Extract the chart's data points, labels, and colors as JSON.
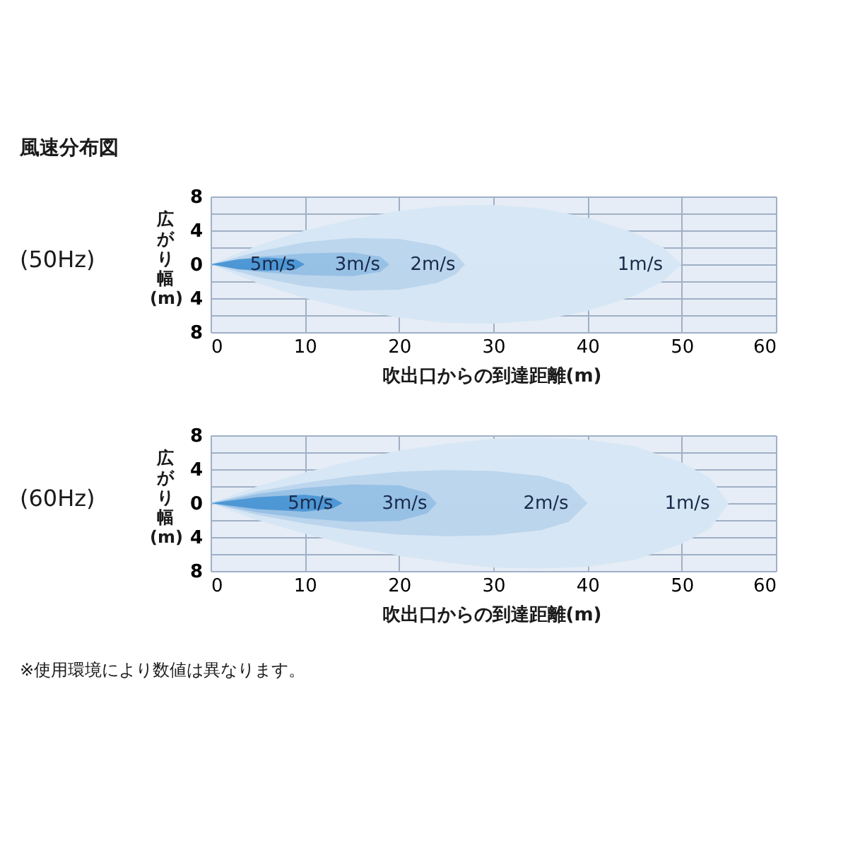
{
  "chart_data": [
    {
      "type": "area",
      "title": "風速分布図",
      "subtitle": "(50Hz)",
      "xlabel": "吹出口からの到達距離(m)",
      "ylabel": "広がり幅(m)",
      "xlim": [
        0,
        60
      ],
      "xticks": [
        0,
        10,
        20,
        30,
        40,
        50,
        60
      ],
      "ylim": [
        -8,
        8
      ],
      "yticks": [
        {
          "value": -8,
          "label": "8"
        },
        {
          "value": -6,
          "label": null
        },
        {
          "value": -4,
          "label": "4"
        },
        {
          "value": -2,
          "label": null
        },
        0,
        {
          "value": 2,
          "label": null
        },
        4,
        {
          "value": 6,
          "label": null
        },
        8
      ],
      "grid": true,
      "series": [
        {
          "name": "1m/s",
          "color": "#d7e7f5",
          "x": [
            0,
            2,
            5,
            10,
            15,
            20,
            25,
            30,
            35,
            40,
            45,
            48,
            50
          ],
          "values": [
            0,
            0.9,
            2.2,
            4,
            5.3,
            6.3,
            6.9,
            7,
            6.6,
            5.5,
            3.7,
            2,
            0
          ]
        },
        {
          "color": "#d6e6f4",
          "x": [
            0,
            2,
            5,
            10,
            15,
            20,
            25,
            30,
            35,
            40,
            45,
            48,
            50
          ],
          "values": [
            0,
            -0.9,
            -2.2,
            -4,
            -5.3,
            -6.3,
            -6.9,
            -7,
            -6.6,
            -5.5,
            -3.7,
            -2,
            0
          ]
        },
        {
          "name": "2m/s",
          "color": "#bcd6ee",
          "x": [
            0,
            5,
            10,
            15,
            20,
            24,
            26,
            27
          ],
          "values": [
            0,
            1.5,
            2.6,
            3.1,
            3,
            2.2,
            1.2,
            0
          ]
        },
        {
          "color": "#bbd5ed",
          "x": [
            0,
            5,
            10,
            15,
            20,
            24,
            26,
            27
          ],
          "values": [
            0,
            -1.5,
            -2.6,
            -3.1,
            -3,
            -2.2,
            -1.2,
            0
          ]
        },
        {
          "name": "3m/s",
          "color": "#98c1e6",
          "x": [
            0,
            5,
            10,
            15,
            18,
            19
          ],
          "values": [
            0,
            0.9,
            1.3,
            1.4,
            0.9,
            0
          ]
        },
        {
          "color": "#97c0e5",
          "x": [
            0,
            5,
            10,
            15,
            18,
            19
          ],
          "values": [
            0,
            -0.9,
            -1.3,
            -1.4,
            -0.9,
            0
          ]
        },
        {
          "name": "5m/s",
          "color": "#4f98d6",
          "x": [
            0,
            3,
            6,
            9,
            10
          ],
          "values": [
            0,
            0.6,
            0.8,
            0.6,
            0
          ]
        },
        {
          "color": "#4e97d5",
          "x": [
            0,
            3,
            6,
            9,
            10
          ],
          "values": [
            0,
            -0.6,
            -0.8,
            -0.6,
            0
          ]
        }
      ]
    },
    {
      "type": "area",
      "subtitle": "(60Hz)",
      "xlabel": "吹出口からの到達距離(m)",
      "ylabel": "広がり幅(m)",
      "xlim": [
        0,
        60
      ],
      "xticks": [
        0,
        10,
        20,
        30,
        40,
        50,
        60
      ],
      "ylim": [
        -8,
        8
      ],
      "yticks": [
        {
          "value": -8,
          "label": "8"
        },
        {
          "value": -6,
          "label": null
        },
        {
          "value": -4,
          "label": "4"
        },
        {
          "value": -2,
          "label": null
        },
        0,
        {
          "value": 2,
          "label": null
        },
        4,
        {
          "value": 6,
          "label": null
        },
        8
      ],
      "grid": true,
      "series": [
        {
          "name": "1m/s",
          "color": "#d7e7f5",
          "x": [
            0,
            5,
            10,
            15,
            20,
            25,
            30,
            35,
            40,
            45,
            50,
            53,
            55
          ],
          "values": [
            0,
            2,
            3.6,
            5,
            6.2,
            7,
            7.6,
            7.7,
            7.5,
            6.7,
            4.8,
            3,
            0
          ]
        },
        {
          "color": "#d6e6f4",
          "x": [
            0,
            5,
            10,
            15,
            20,
            25,
            30,
            35,
            40,
            45,
            50,
            53,
            55
          ],
          "values": [
            0,
            -2,
            -3.6,
            -5,
            -6.2,
            -7,
            -7.6,
            -7.7,
            -7.5,
            -6.7,
            -4.8,
            -3,
            0
          ]
        },
        {
          "name": "2m/s",
          "color": "#bcd6ee",
          "x": [
            0,
            5,
            10,
            15,
            20,
            25,
            30,
            35,
            38,
            40
          ],
          "values": [
            0,
            1.4,
            2.4,
            3.2,
            3.7,
            3.9,
            3.8,
            3.2,
            2.2,
            0
          ]
        },
        {
          "color": "#bbd5ed",
          "x": [
            0,
            5,
            10,
            15,
            20,
            25,
            30,
            35,
            38,
            40
          ],
          "values": [
            0,
            -1.4,
            -2.4,
            -3.2,
            -3.7,
            -3.9,
            -3.8,
            -3.2,
            -2.2,
            0
          ]
        },
        {
          "name": "3m/s",
          "color": "#98c1e6",
          "x": [
            0,
            5,
            10,
            15,
            20,
            23,
            24
          ],
          "values": [
            0,
            1.1,
            1.8,
            2.2,
            2.1,
            1.2,
            0
          ]
        },
        {
          "color": "#97c0e5",
          "x": [
            0,
            5,
            10,
            15,
            20,
            23,
            24
          ],
          "values": [
            0,
            -1.1,
            -1.8,
            -2.2,
            -2.1,
            -1.2,
            0
          ]
        },
        {
          "name": "5m/s",
          "color": "#4f98d6",
          "x": [
            0,
            5,
            10,
            13,
            14
          ],
          "values": [
            0,
            0.7,
            1,
            0.6,
            0
          ]
        },
        {
          "color": "#4e97d5",
          "x": [
            0,
            5,
            10,
            13,
            14
          ],
          "values": [
            0,
            -0.7,
            -1,
            -0.6,
            0
          ]
        }
      ],
      "annotations": [
        "※使用環境により数値は異なります。"
      ]
    }
  ]
}
